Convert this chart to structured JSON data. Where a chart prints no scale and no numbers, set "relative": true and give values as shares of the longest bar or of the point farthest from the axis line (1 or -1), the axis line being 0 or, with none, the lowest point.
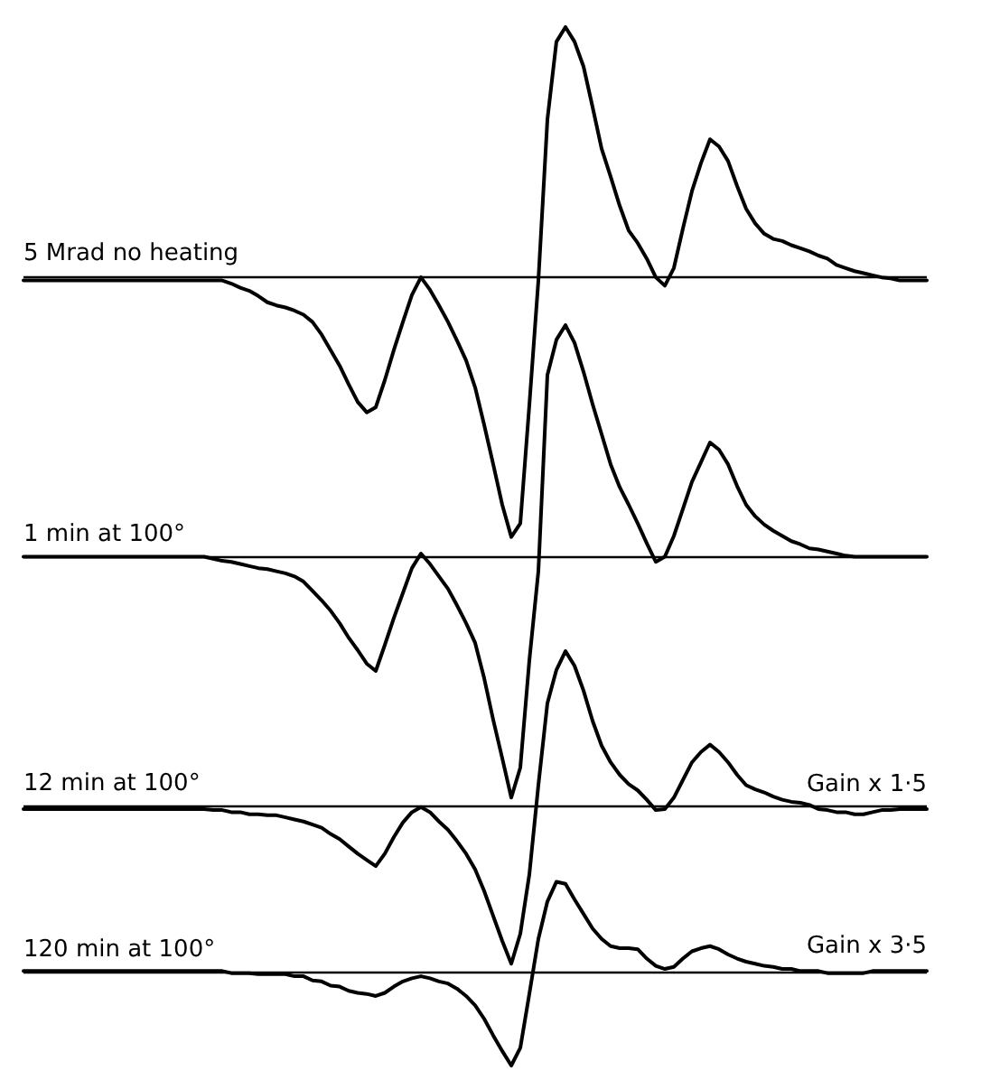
{
  "chart_data": {
    "type": "line",
    "relative": true,
    "line_style": "solid",
    "categories": [
      null,
      null,
      null,
      null,
      null,
      null,
      null,
      null,
      null,
      null,
      null,
      null,
      null,
      null,
      null,
      null,
      null,
      null,
      null,
      null,
      null,
      null,
      null,
      null,
      null,
      null,
      null,
      null,
      null,
      null,
      null,
      null,
      null,
      null,
      null,
      null,
      null,
      null,
      null,
      null,
      null,
      null,
      null,
      null,
      null,
      null,
      null,
      null,
      null,
      null,
      null,
      null,
      null,
      null,
      null,
      null,
      null,
      null,
      null,
      null,
      null,
      null,
      null,
      null,
      null,
      null,
      null,
      null,
      null,
      null,
      null,
      null,
      null,
      null,
      null,
      null,
      null,
      null,
      null,
      null,
      null,
      null,
      null,
      null,
      null,
      null,
      null,
      null,
      null,
      null,
      null,
      null,
      null,
      null,
      null,
      null,
      null,
      null,
      null,
      null,
      null
    ],
    "series": [
      {
        "color": "#000000",
        "values": [
          0.756,
          0.756,
          0.756,
          0.756,
          0.756,
          0.756,
          0.756,
          0.756,
          0.756,
          0.756,
          0.756,
          0.756,
          0.756,
          0.756,
          0.756,
          0.756,
          0.756,
          0.756,
          0.756,
          0.756,
          0.756,
          0.756,
          0.756,
          0.753,
          0.749,
          0.746,
          0.741,
          0.735,
          0.732,
          0.73,
          0.727,
          0.723,
          0.716,
          0.704,
          0.689,
          0.674,
          0.656,
          0.639,
          0.629,
          0.634,
          0.66,
          0.689,
          0.716,
          0.742,
          0.759,
          0.747,
          0.732,
          0.716,
          0.698,
          0.679,
          0.653,
          0.617,
          0.579,
          0.54,
          0.509,
          0.522,
          0.636,
          0.756,
          0.911,
          0.986,
          1,
          0.986,
          0.962,
          0.923,
          0.883,
          0.856,
          0.828,
          0.804,
          0.792,
          0.777,
          0.759,
          0.751,
          0.768,
          0.806,
          0.842,
          0.869,
          0.892,
          0.885,
          0.871,
          0.847,
          0.825,
          0.811,
          0.801,
          0.796,
          0.794,
          0.79,
          0.787,
          0.784,
          0.78,
          0.777,
          0.771,
          0.768,
          0.765,
          0.763,
          0.761,
          0.759,
          0.758,
          0.756,
          0.756,
          0.756,
          0.756
        ]
      },
      {
        "color": "#000000",
        "values": [
          0.49,
          0.49,
          0.49,
          0.49,
          0.49,
          0.49,
          0.49,
          0.49,
          0.49,
          0.49,
          0.49,
          0.49,
          0.49,
          0.49,
          0.49,
          0.49,
          0.49,
          0.49,
          0.49,
          0.49,
          0.49,
          0.488,
          0.486,
          0.485,
          0.483,
          0.481,
          0.479,
          0.478,
          0.476,
          0.474,
          0.471,
          0.466,
          0.457,
          0.448,
          0.438,
          0.426,
          0.412,
          0.4,
          0.387,
          0.38,
          0.405,
          0.431,
          0.455,
          0.479,
          0.493,
          0.483,
          0.471,
          0.459,
          0.443,
          0.426,
          0.407,
          0.373,
          0.333,
          0.296,
          0.258,
          0.287,
          0.39,
          0.476,
          0.665,
          0.699,
          0.713,
          0.696,
          0.668,
          0.637,
          0.608,
          0.579,
          0.557,
          0.54,
          0.522,
          0.503,
          0.485,
          0.49,
          0.51,
          0.536,
          0.562,
          0.581,
          0.6,
          0.593,
          0.579,
          0.558,
          0.54,
          0.529,
          0.521,
          0.515,
          0.51,
          0.505,
          0.502,
          0.498,
          0.497,
          0.495,
          0.493,
          0.491,
          0.49,
          0.49,
          0.49,
          0.49,
          0.49,
          0.49,
          0.49,
          0.49,
          0.49
        ]
      },
      {
        "color": "#000000",
        "values": [
          0.247,
          0.247,
          0.247,
          0.247,
          0.247,
          0.247,
          0.247,
          0.247,
          0.247,
          0.247,
          0.247,
          0.247,
          0.247,
          0.247,
          0.247,
          0.247,
          0.247,
          0.247,
          0.247,
          0.247,
          0.247,
          0.246,
          0.246,
          0.244,
          0.244,
          0.242,
          0.242,
          0.241,
          0.241,
          0.239,
          0.237,
          0.235,
          0.232,
          0.229,
          0.223,
          0.218,
          0.211,
          0.204,
          0.198,
          0.192,
          0.204,
          0.22,
          0.234,
          0.244,
          0.249,
          0.244,
          0.235,
          0.227,
          0.216,
          0.204,
          0.189,
          0.168,
          0.144,
          0.12,
          0.098,
          0.127,
          0.184,
          0.27,
          0.349,
          0.381,
          0.399,
          0.385,
          0.361,
          0.332,
          0.308,
          0.292,
          0.28,
          0.271,
          0.265,
          0.256,
          0.246,
          0.247,
          0.258,
          0.275,
          0.292,
          0.302,
          0.309,
          0.302,
          0.292,
          0.28,
          0.27,
          0.266,
          0.263,
          0.259,
          0.256,
          0.254,
          0.253,
          0.251,
          0.247,
          0.246,
          0.244,
          0.244,
          0.242,
          0.242,
          0.244,
          0.246,
          0.246,
          0.247,
          0.247,
          0.247,
          0.247
        ]
      },
      {
        "color": "#000000",
        "values": [
          0.091,
          0.091,
          0.091,
          0.091,
          0.091,
          0.091,
          0.091,
          0.091,
          0.091,
          0.091,
          0.091,
          0.091,
          0.091,
          0.091,
          0.091,
          0.091,
          0.091,
          0.091,
          0.091,
          0.091,
          0.091,
          0.091,
          0.091,
          0.089,
          0.089,
          0.089,
          0.088,
          0.088,
          0.088,
          0.088,
          0.086,
          0.086,
          0.082,
          0.081,
          0.077,
          0.076,
          0.072,
          0.07,
          0.069,
          0.067,
          0.07,
          0.076,
          0.081,
          0.084,
          0.086,
          0.084,
          0.081,
          0.079,
          0.074,
          0.067,
          0.058,
          0.045,
          0.029,
          0.014,
          0,
          0.017,
          0.069,
          0.122,
          0.158,
          0.177,
          0.175,
          0.16,
          0.146,
          0.132,
          0.122,
          0.115,
          0.113,
          0.113,
          0.112,
          0.103,
          0.096,
          0.093,
          0.095,
          0.103,
          0.11,
          0.113,
          0.115,
          0.112,
          0.107,
          0.103,
          0.1,
          0.098,
          0.096,
          0.095,
          0.093,
          0.093,
          0.091,
          0.091,
          0.091,
          0.089,
          0.089,
          0.089,
          0.089,
          0.089,
          0.091,
          0.091,
          0.091,
          0.091,
          0.091,
          0.091,
          0.091
        ]
      }
    ],
    "ref_lines": [
      {
        "axis": "y",
        "value": 0.756,
        "label": "5 Mrad no heating",
        "color": "#000000"
      },
      {
        "axis": "y",
        "value": 0.49,
        "label": "1 min at 100°",
        "color": "#000000"
      },
      {
        "axis": "y",
        "value": 0.247,
        "label": "12 min at 100°",
        "color": "#000000"
      },
      {
        "axis": "y",
        "value": 0.091,
        "label": "120 min at 100°",
        "color": "#000000"
      }
    ],
    "annotations": [
      {
        "text": "Gain x 1·5",
        "y": 0.247
      },
      {
        "text": "Gain x 3·5",
        "y": 0.091
      }
    ]
  }
}
